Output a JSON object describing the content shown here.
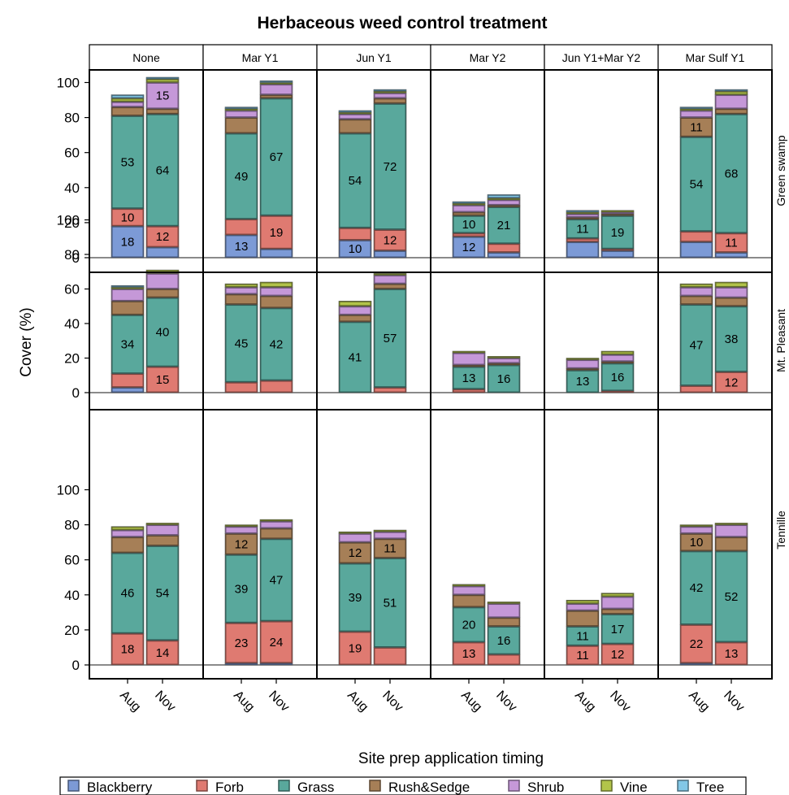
{
  "chart_data": {
    "type": "bar",
    "stacked": true,
    "title": "Herbaceous weed control treatment",
    "xlabel": "Site prep application timing",
    "ylabel": "Cover (%)",
    "ylim": [
      0,
      105
    ],
    "yticks": [
      "0",
      "20",
      "40",
      "60",
      "80",
      "100"
    ],
    "categories": [
      "Aug",
      "Nov"
    ],
    "columns": [
      "None",
      "Mar Y1",
      "Jun Y1",
      "Mar Y2",
      "Jun Y1+Mar Y2",
      "Mar Sulf Y1"
    ],
    "rows": [
      "Green swamp",
      "Mt. Pleasant",
      "Tennille"
    ],
    "legend_position": "bottom",
    "series_names": [
      "Blackberry",
      "Forb",
      "Grass",
      "Rush&Sedge",
      "Shrub",
      "Vine",
      "Tree"
    ],
    "colors": {
      "Blackberry": "#7c9ad6",
      "Forb": "#df7a71",
      "Grass": "#59a89c",
      "Rush&Sedge": "#a67f57",
      "Shrub": "#c598d8",
      "Vine": "#b2c44a",
      "Tree": "#82c7e6"
    },
    "panels": [
      {
        "row": "Green swamp",
        "column": "None",
        "bars": [
          {
            "x": "Aug",
            "values": [
              18,
              10,
              53,
              5,
              3,
              2,
              2
            ]
          },
          {
            "x": "Nov",
            "values": [
              6,
              12,
              64,
              3,
              15,
              2,
              1
            ]
          }
        ]
      },
      {
        "row": "Green swamp",
        "column": "Mar Y1",
        "bars": [
          {
            "x": "Aug",
            "values": [
              13,
              9,
              49,
              9,
              4,
              1,
              1
            ]
          },
          {
            "x": "Nov",
            "values": [
              5,
              19,
              67,
              2,
              6,
              1,
              1
            ]
          }
        ]
      },
      {
        "row": "Green swamp",
        "column": "Jun Y1",
        "bars": [
          {
            "x": "Aug",
            "values": [
              10,
              7,
              54,
              8,
              3,
              1,
              1
            ]
          },
          {
            "x": "Nov",
            "values": [
              4,
              12,
              72,
              3,
              3,
              1,
              1
            ]
          }
        ]
      },
      {
        "row": "Green swamp",
        "column": "Mar Y2",
        "bars": [
          {
            "x": "Aug",
            "values": [
              12,
              2,
              10,
              2,
              4,
              1,
              1
            ]
          },
          {
            "x": "Nov",
            "values": [
              3,
              5,
              21,
              1,
              3,
              1,
              2
            ]
          }
        ]
      },
      {
        "row": "Green swamp",
        "column": "Jun Y1+Mar Y2",
        "bars": [
          {
            "x": "Aug",
            "values": [
              9,
              2,
              11,
              1,
              2,
              1,
              1
            ]
          },
          {
            "x": "Nov",
            "values": [
              4,
              1,
              19,
              1,
              1,
              1,
              0
            ]
          }
        ]
      },
      {
        "row": "Green swamp",
        "column": "Mar Sulf Y1",
        "bars": [
          {
            "x": "Aug",
            "values": [
              9,
              6,
              54,
              11,
              4,
              1,
              1
            ]
          },
          {
            "x": "Nov",
            "values": [
              3,
              11,
              68,
              3,
              8,
              2,
              1
            ]
          }
        ]
      },
      {
        "row": "Mt. Pleasant",
        "column": "None",
        "bars": [
          {
            "x": "Aug",
            "values": [
              3,
              8,
              34,
              8,
              7,
              1,
              1
            ]
          },
          {
            "x": "Nov",
            "values": [
              0,
              15,
              40,
              5,
              9,
              2,
              0
            ]
          }
        ]
      },
      {
        "row": "Mt. Pleasant",
        "column": "Mar Y1",
        "bars": [
          {
            "x": "Aug",
            "values": [
              0,
              6,
              45,
              6,
              4,
              2,
              0
            ]
          },
          {
            "x": "Nov",
            "values": [
              0,
              7,
              42,
              7,
              5,
              3,
              0
            ]
          }
        ]
      },
      {
        "row": "Mt. Pleasant",
        "column": "Jun Y1",
        "bars": [
          {
            "x": "Aug",
            "values": [
              0,
              0,
              41,
              4,
              5,
              3,
              0
            ]
          },
          {
            "x": "Nov",
            "values": [
              0,
              3,
              57,
              3,
              5,
              1,
              0
            ]
          }
        ]
      },
      {
        "row": "Mt. Pleasant",
        "column": "Mar Y2",
        "bars": [
          {
            "x": "Aug",
            "values": [
              0,
              2,
              13,
              1,
              7,
              1,
              0
            ]
          },
          {
            "x": "Nov",
            "values": [
              0,
              0,
              16,
              1,
              3,
              1,
              0
            ]
          }
        ]
      },
      {
        "row": "Mt. Pleasant",
        "column": "Jun Y1+Mar Y2",
        "bars": [
          {
            "x": "Aug",
            "values": [
              0,
              0,
              13,
              1,
              5,
              1,
              0
            ]
          },
          {
            "x": "Nov",
            "values": [
              0,
              1,
              16,
              1,
              4,
              2,
              0
            ]
          }
        ]
      },
      {
        "row": "Mt. Pleasant",
        "column": "Mar Sulf Y1",
        "bars": [
          {
            "x": "Aug",
            "values": [
              0,
              4,
              47,
              5,
              5,
              2,
              0
            ]
          },
          {
            "x": "Nov",
            "values": [
              0,
              12,
              38,
              5,
              6,
              3,
              0
            ]
          }
        ]
      },
      {
        "row": "Tennille",
        "column": "None",
        "bars": [
          {
            "x": "Aug",
            "values": [
              0,
              18,
              46,
              9,
              4,
              2,
              0
            ]
          },
          {
            "x": "Nov",
            "values": [
              0,
              14,
              54,
              6,
              6,
              1,
              0
            ]
          }
        ]
      },
      {
        "row": "Tennille",
        "column": "Mar Y1",
        "bars": [
          {
            "x": "Aug",
            "values": [
              1,
              23,
              39,
              12,
              4,
              1,
              0
            ]
          },
          {
            "x": "Nov",
            "values": [
              1,
              24,
              47,
              6,
              4,
              1,
              0
            ]
          }
        ]
      },
      {
        "row": "Tennille",
        "column": "Jun Y1",
        "bars": [
          {
            "x": "Aug",
            "values": [
              0,
              19,
              39,
              12,
              5,
              1,
              0
            ]
          },
          {
            "x": "Nov",
            "values": [
              0,
              10,
              51,
              11,
              4,
              1,
              0
            ]
          }
        ]
      },
      {
        "row": "Tennille",
        "column": "Mar Y2",
        "bars": [
          {
            "x": "Aug",
            "values": [
              0,
              13,
              20,
              7,
              5,
              1,
              0
            ]
          },
          {
            "x": "Nov",
            "values": [
              0,
              6,
              16,
              5,
              8,
              1,
              0
            ]
          }
        ]
      },
      {
        "row": "Tennille",
        "column": "Jun Y1+Mar Y2",
        "bars": [
          {
            "x": "Aug",
            "values": [
              0,
              11,
              11,
              9,
              4,
              2,
              0
            ]
          },
          {
            "x": "Nov",
            "values": [
              0,
              12,
              17,
              3,
              7,
              2,
              0
            ]
          }
        ]
      },
      {
        "row": "Tennille",
        "column": "Mar Sulf Y1",
        "bars": [
          {
            "x": "Aug",
            "values": [
              1,
              22,
              42,
              10,
              4,
              1,
              0
            ]
          },
          {
            "x": "Nov",
            "values": [
              0,
              13,
              52,
              8,
              7,
              1,
              0
            ]
          }
        ]
      }
    ],
    "data_labels": [
      {
        "row": "Green swamp",
        "column": "None",
        "x": "Aug",
        "series": "Blackberry",
        "text": "18"
      },
      {
        "row": "Green swamp",
        "column": "None",
        "x": "Aug",
        "series": "Forb",
        "text": "10"
      },
      {
        "row": "Green swamp",
        "column": "None",
        "x": "Aug",
        "series": "Grass",
        "text": "53"
      },
      {
        "row": "Green swamp",
        "column": "None",
        "x": "Nov",
        "series": "Forb",
        "text": "12"
      },
      {
        "row": "Green swamp",
        "column": "None",
        "x": "Nov",
        "series": "Grass",
        "text": "64"
      },
      {
        "row": "Green swamp",
        "column": "None",
        "x": "Nov",
        "series": "Shrub",
        "text": "15"
      },
      {
        "row": "Green swamp",
        "column": "Mar Y1",
        "x": "Aug",
        "series": "Blackberry",
        "text": "13"
      },
      {
        "row": "Green swamp",
        "column": "Mar Y1",
        "x": "Aug",
        "series": "Grass",
        "text": "49"
      },
      {
        "row": "Green swamp",
        "column": "Mar Y1",
        "x": "Nov",
        "series": "Forb",
        "text": "19"
      },
      {
        "row": "Green swamp",
        "column": "Mar Y1",
        "x": "Nov",
        "series": "Grass",
        "text": "67"
      },
      {
        "row": "Green swamp",
        "column": "Jun Y1",
        "x": "Aug",
        "series": "Blackberry",
        "text": "10"
      },
      {
        "row": "Green swamp",
        "column": "Jun Y1",
        "x": "Aug",
        "series": "Grass",
        "text": "54"
      },
      {
        "row": "Green swamp",
        "column": "Jun Y1",
        "x": "Nov",
        "series": "Forb",
        "text": "12"
      },
      {
        "row": "Green swamp",
        "column": "Jun Y1",
        "x": "Nov",
        "series": "Grass",
        "text": "72"
      },
      {
        "row": "Green swamp",
        "column": "Mar Y2",
        "x": "Aug",
        "series": "Blackberry",
        "text": "12"
      },
      {
        "row": "Green swamp",
        "column": "Mar Y2",
        "x": "Aug",
        "series": "Grass",
        "text": "10"
      },
      {
        "row": "Green swamp",
        "column": "Mar Y2",
        "x": "Nov",
        "series": "Grass",
        "text": "21"
      },
      {
        "row": "Green swamp",
        "column": "Jun Y1+Mar Y2",
        "x": "Aug",
        "series": "Grass",
        "text": "11"
      },
      {
        "row": "Green swamp",
        "column": "Jun Y1+Mar Y2",
        "x": "Nov",
        "series": "Grass",
        "text": "19"
      },
      {
        "row": "Green swamp",
        "column": "Mar Sulf Y1",
        "x": "Aug",
        "series": "Grass",
        "text": "54"
      },
      {
        "row": "Green swamp",
        "column": "Mar Sulf Y1",
        "x": "Aug",
        "series": "Rush&Sedge",
        "text": "11"
      },
      {
        "row": "Green swamp",
        "column": "Mar Sulf Y1",
        "x": "Nov",
        "series": "Forb",
        "text": "11"
      },
      {
        "row": "Green swamp",
        "column": "Mar Sulf Y1",
        "x": "Nov",
        "series": "Grass",
        "text": "68"
      },
      {
        "row": "Mt. Pleasant",
        "column": "None",
        "x": "Aug",
        "series": "Grass",
        "text": "34"
      },
      {
        "row": "Mt. Pleasant",
        "column": "None",
        "x": "Nov",
        "series": "Forb",
        "text": "15"
      },
      {
        "row": "Mt. Pleasant",
        "column": "None",
        "x": "Nov",
        "series": "Grass",
        "text": "40"
      },
      {
        "row": "Mt. Pleasant",
        "column": "Mar Y1",
        "x": "Aug",
        "series": "Grass",
        "text": "45"
      },
      {
        "row": "Mt. Pleasant",
        "column": "Mar Y1",
        "x": "Nov",
        "series": "Grass",
        "text": "42"
      },
      {
        "row": "Mt. Pleasant",
        "column": "Jun Y1",
        "x": "Aug",
        "series": "Grass",
        "text": "41"
      },
      {
        "row": "Mt. Pleasant",
        "column": "Jun Y1",
        "x": "Nov",
        "series": "Grass",
        "text": "57"
      },
      {
        "row": "Mt. Pleasant",
        "column": "Mar Y2",
        "x": "Aug",
        "series": "Grass",
        "text": "13"
      },
      {
        "row": "Mt. Pleasant",
        "column": "Mar Y2",
        "x": "Nov",
        "series": "Grass",
        "text": "16"
      },
      {
        "row": "Mt. Pleasant",
        "column": "Jun Y1+Mar Y2",
        "x": "Aug",
        "series": "Grass",
        "text": "13"
      },
      {
        "row": "Mt. Pleasant",
        "column": "Jun Y1+Mar Y2",
        "x": "Nov",
        "series": "Grass",
        "text": "16"
      },
      {
        "row": "Mt. Pleasant",
        "column": "Mar Sulf Y1",
        "x": "Aug",
        "series": "Grass",
        "text": "47"
      },
      {
        "row": "Mt. Pleasant",
        "column": "Mar Sulf Y1",
        "x": "Nov",
        "series": "Forb",
        "text": "12"
      },
      {
        "row": "Mt. Pleasant",
        "column": "Mar Sulf Y1",
        "x": "Nov",
        "series": "Grass",
        "text": "38"
      },
      {
        "row": "Tennille",
        "column": "None",
        "x": "Aug",
        "series": "Forb",
        "text": "18"
      },
      {
        "row": "Tennille",
        "column": "None",
        "x": "Aug",
        "series": "Grass",
        "text": "46"
      },
      {
        "row": "Tennille",
        "column": "None",
        "x": "Nov",
        "series": "Forb",
        "text": "14"
      },
      {
        "row": "Tennille",
        "column": "None",
        "x": "Nov",
        "series": "Grass",
        "text": "54"
      },
      {
        "row": "Tennille",
        "column": "Mar Y1",
        "x": "Aug",
        "series": "Forb",
        "text": "23"
      },
      {
        "row": "Tennille",
        "column": "Mar Y1",
        "x": "Aug",
        "series": "Grass",
        "text": "39"
      },
      {
        "row": "Tennille",
        "column": "Mar Y1",
        "x": "Aug",
        "series": "Rush&Sedge",
        "text": "12"
      },
      {
        "row": "Tennille",
        "column": "Mar Y1",
        "x": "Nov",
        "series": "Forb",
        "text": "24"
      },
      {
        "row": "Tennille",
        "column": "Mar Y1",
        "x": "Nov",
        "series": "Grass",
        "text": "47"
      },
      {
        "row": "Tennille",
        "column": "Jun Y1",
        "x": "Aug",
        "series": "Forb",
        "text": "19"
      },
      {
        "row": "Tennille",
        "column": "Jun Y1",
        "x": "Aug",
        "series": "Grass",
        "text": "39"
      },
      {
        "row": "Tennille",
        "column": "Jun Y1",
        "x": "Aug",
        "series": "Rush&Sedge",
        "text": "12"
      },
      {
        "row": "Tennille",
        "column": "Jun Y1",
        "x": "Nov",
        "series": "Grass",
        "text": "51"
      },
      {
        "row": "Tennille",
        "column": "Jun Y1",
        "x": "Nov",
        "series": "Rush&Sedge",
        "text": "11"
      },
      {
        "row": "Tennille",
        "column": "Mar Y2",
        "x": "Aug",
        "series": "Forb",
        "text": "13"
      },
      {
        "row": "Tennille",
        "column": "Mar Y2",
        "x": "Aug",
        "series": "Grass",
        "text": "20"
      },
      {
        "row": "Tennille",
        "column": "Mar Y2",
        "x": "Nov",
        "series": "Grass",
        "text": "16"
      },
      {
        "row": "Tennille",
        "column": "Jun Y1+Mar Y2",
        "x": "Aug",
        "series": "Forb",
        "text": "11"
      },
      {
        "row": "Tennille",
        "column": "Jun Y1+Mar Y2",
        "x": "Aug",
        "series": "Grass",
        "text": "11"
      },
      {
        "row": "Tennille",
        "column": "Jun Y1+Mar Y2",
        "x": "Nov",
        "series": "Forb",
        "text": "12"
      },
      {
        "row": "Tennille",
        "column": "Jun Y1+Mar Y2",
        "x": "Nov",
        "series": "Grass",
        "text": "17"
      },
      {
        "row": "Tennille",
        "column": "Mar Sulf Y1",
        "x": "Aug",
        "series": "Forb",
        "text": "22"
      },
      {
        "row": "Tennille",
        "column": "Mar Sulf Y1",
        "x": "Aug",
        "series": "Grass",
        "text": "42"
      },
      {
        "row": "Tennille",
        "column": "Mar Sulf Y1",
        "x": "Aug",
        "series": "Rush&Sedge",
        "text": "10"
      },
      {
        "row": "Tennille",
        "column": "Mar Sulf Y1",
        "x": "Nov",
        "series": "Forb",
        "text": "13"
      },
      {
        "row": "Tennille",
        "column": "Mar Sulf Y1",
        "x": "Nov",
        "series": "Grass",
        "text": "52"
      }
    ]
  }
}
